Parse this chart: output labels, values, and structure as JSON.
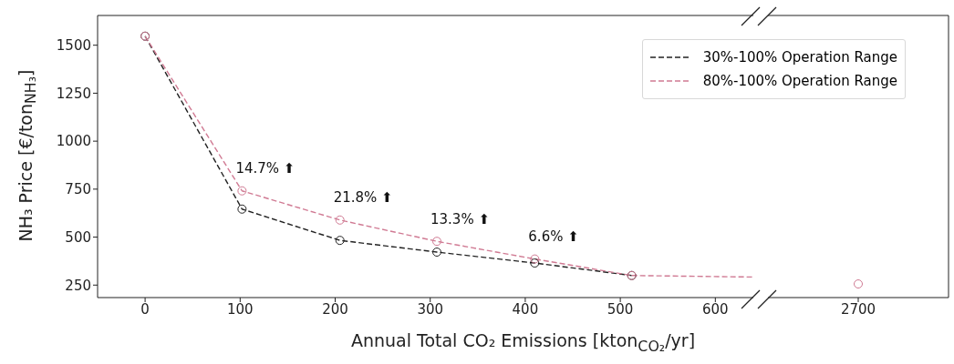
{
  "chart_data": [
    {
      "type": "line",
      "xlabel": "Annual Total CO₂ Emissions [kton$_{CO₂}$/yr]",
      "ylabel": "NH₃ Price [€/ton$_{NH₃}$]",
      "xlim": [
        -50,
        640
      ],
      "xticks": [
        0,
        100,
        200,
        300,
        400,
        500,
        600
      ],
      "ylim": [
        185,
        1655
      ],
      "yticks": [
        250,
        500,
        750,
        1000,
        1250,
        1500
      ],
      "marker": "circle",
      "line_style": "dashed",
      "legend": "top right",
      "series": [
        {
          "name": "30%-100% Operation Range",
          "color": "#222222",
          "x": [
            0,
            102,
            205,
            307,
            410,
            512
          ],
          "values": [
            1547,
            646,
            483,
            422,
            365,
            300
          ]
        },
        {
          "name": "80%-100% Operation Range",
          "color": "#d07a93",
          "x": [
            0,
            102,
            205,
            307,
            410,
            512
          ],
          "values": [
            1547,
            741,
            589,
            478,
            386,
            300
          ]
        },
        {
          "color": "#d07a93",
          "x": [
            512,
            640
          ],
          "values": [
            300,
            292
          ],
          "marker": "none"
        }
      ],
      "annotations": [
        {
          "text": "14.7% ⬆",
          "x": 102,
          "y": 741
        },
        {
          "text": "21.8% ⬆",
          "x": 205,
          "y": 589
        },
        {
          "text": "13.3% ⬆",
          "x": 307,
          "y": 478
        },
        {
          "text": "6.6% ⬆",
          "x": 410,
          "y": 386
        }
      ]
    },
    {
      "type": "line",
      "categories": [
        "2700"
      ],
      "ylim": [
        185,
        1655
      ],
      "yticks": [
        250,
        500,
        750,
        1000,
        1250,
        1500
      ],
      "marker": "circle",
      "line_style": "dashed",
      "tick_labels": "x",
      "series": [
        {
          "color": "#d07a93",
          "values": [
            256
          ]
        }
      ]
    }
  ]
}
